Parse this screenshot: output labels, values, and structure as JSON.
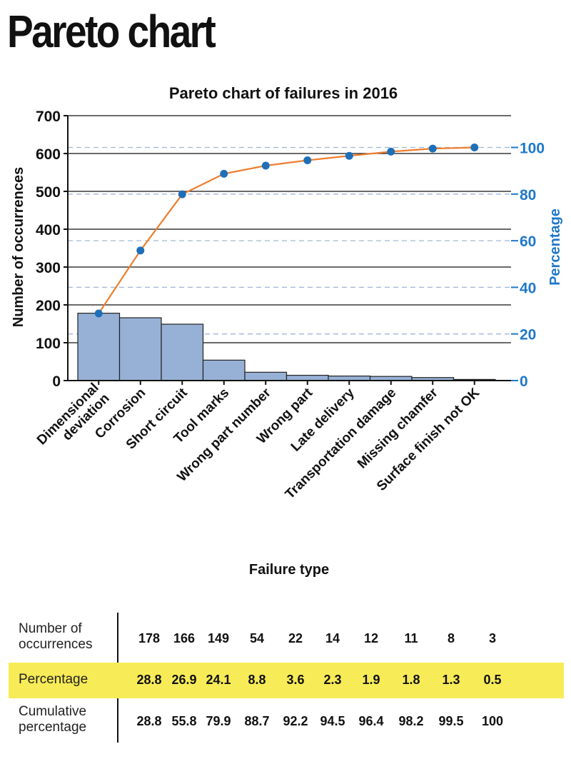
{
  "page": {
    "title": "Pareto chart"
  },
  "colors": {
    "bar_fill": "#97b1d6",
    "bar_stroke": "#222222",
    "line": "#ee7d2d",
    "marker": "#1f6fb8",
    "right_axis": "#1f78c8",
    "dashed_grid": "#9fb7d8",
    "highlight": "#f7ec57"
  },
  "chart_data": {
    "type": "bar",
    "title": "Pareto chart of failures in 2016",
    "xlabel": "Failure type",
    "ylabel": "Number of occurrences",
    "y2label": "Percentage",
    "categories": [
      "Dimensional deviation",
      "Corrosion",
      "Short circuit",
      "Tool marks",
      "Wrong part number",
      "Wrong part",
      "Late delivery",
      "Transportation damage",
      "Missing chamfer",
      "Surface finish not OK"
    ],
    "category_lines": [
      [
        "Dimensional",
        "deviation"
      ],
      [
        "Corrosion"
      ],
      [
        "Short circuit"
      ],
      [
        "Tool marks"
      ],
      [
        "Wrong part number"
      ],
      [
        "Wrong part"
      ],
      [
        "Late delivery"
      ],
      [
        "Transportation damage"
      ],
      [
        "Missing chamfer"
      ],
      [
        "Surface finish not OK"
      ]
    ],
    "series": [
      {
        "name": "Number of occurrences",
        "type": "bar",
        "values": [
          178,
          166,
          149,
          54,
          22,
          14,
          12,
          11,
          8,
          3
        ]
      },
      {
        "name": "Cumulative percentage",
        "type": "line",
        "axis": "right",
        "values": [
          28.8,
          55.8,
          79.9,
          88.7,
          92.2,
          94.5,
          96.4,
          98.2,
          99.5,
          100
        ]
      }
    ],
    "ylim": [
      0,
      700
    ],
    "yticks": [
      0,
      100,
      200,
      300,
      400,
      500,
      600,
      700
    ],
    "y2lim": [
      0,
      113.636
    ],
    "y2ticks": [
      0,
      20,
      40,
      60,
      80,
      100
    ],
    "grid": true
  },
  "table": {
    "rows": [
      {
        "label_lines": [
          "Number of",
          "occurrences"
        ],
        "values": [
          "178",
          "166",
          "149",
          "54",
          "22",
          "14",
          "12",
          "11",
          "8",
          "3"
        ]
      },
      {
        "label_lines": [
          "Percentage"
        ],
        "values": [
          "28.8",
          "26.9",
          "24.1",
          "8.8",
          "3.6",
          "2.3",
          "1.9",
          "1.8",
          "1.3",
          "0.5"
        ]
      },
      {
        "label_lines": [
          "Cumulative",
          "percentage"
        ],
        "values": [
          "28.8",
          "55.8",
          "79.9",
          "88.7",
          "92.2",
          "94.5",
          "96.4",
          "98.2",
          "99.5",
          "100"
        ]
      }
    ]
  }
}
